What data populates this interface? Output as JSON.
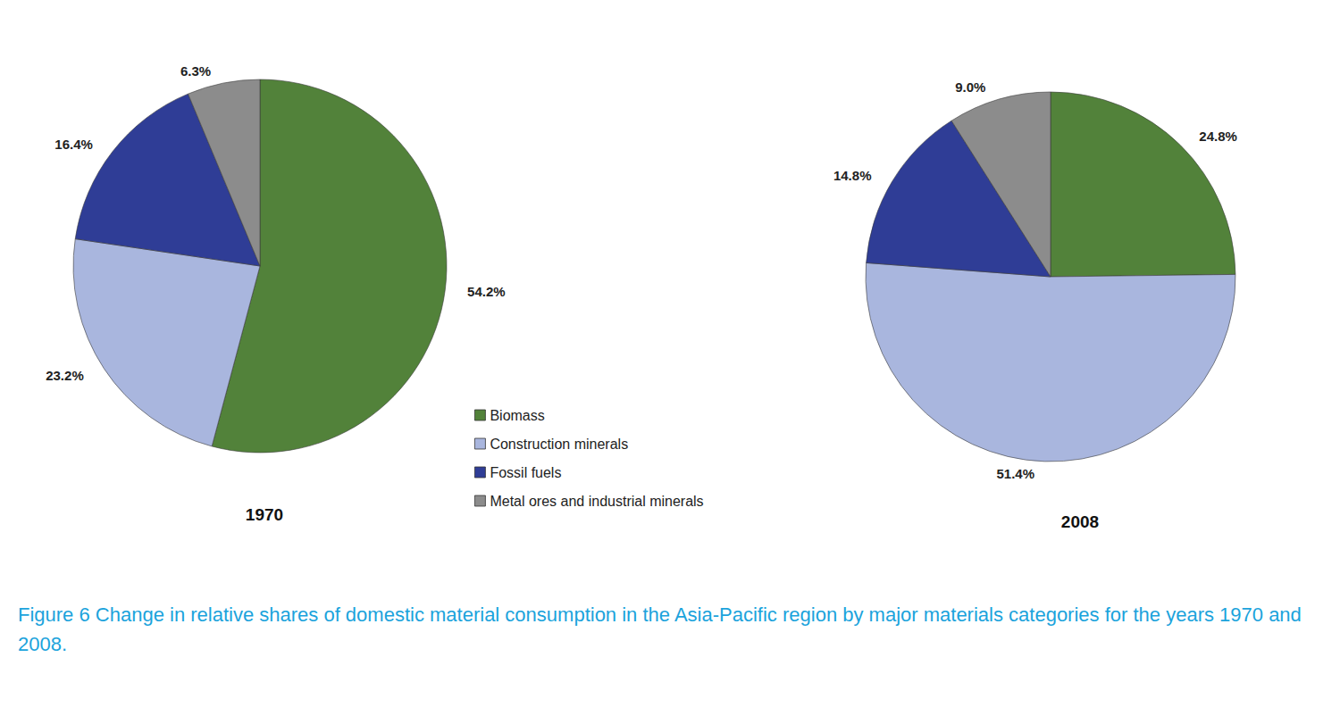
{
  "caption": "Figure 6 Change in relative shares of domestic material consumption in the Asia-Pacific region by major materials categories for the years 1970 and 2008.",
  "chart_data": [
    {
      "type": "pie",
      "title": "1970",
      "categories": [
        "Biomass",
        "Construction minerals",
        "Fossil fuels",
        "Metal ores and industrial minerals"
      ],
      "values": [
        54.2,
        23.2,
        16.4,
        6.3
      ],
      "value_labels": [
        "54.2%",
        "23.2%",
        "16.4%",
        "6.3%"
      ],
      "colors": [
        "#52823a",
        "#a9b6de",
        "#2f3d96",
        "#8c8c8c"
      ],
      "data_labels": true,
      "legend": "center"
    },
    {
      "type": "pie",
      "title": "2008",
      "categories": [
        "Biomass",
        "Construction minerals",
        "Fossil fuels",
        "Metal ores and industrial minerals"
      ],
      "values": [
        24.8,
        51.4,
        14.8,
        9.0
      ],
      "value_labels": [
        "24.8%",
        "51.4%",
        "14.8%",
        "9.0%"
      ],
      "colors": [
        "#52823a",
        "#a9b6de",
        "#2f3d96",
        "#8c8c8c"
      ],
      "data_labels": true
    }
  ]
}
